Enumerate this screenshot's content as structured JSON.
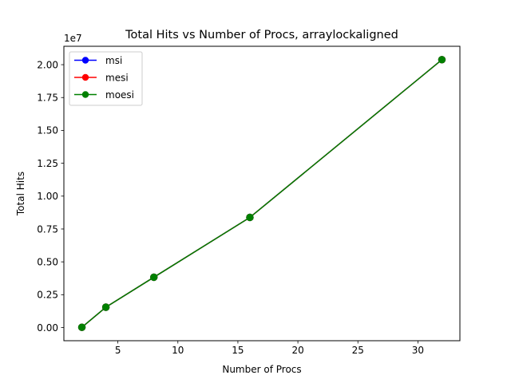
{
  "chart_data": {
    "type": "line",
    "title": "Total Hits vs Number of Procs, arraylockaligned",
    "xlabel": "Number of Procs",
    "ylabel": "Total Hits",
    "y_offset_label": "1e7",
    "y_scale_factor": 10000000,
    "xlim": [
      0.5,
      33.5
    ],
    "ylim": [
      -1000000,
      21400000
    ],
    "x_ticks": [
      5,
      10,
      15,
      20,
      25,
      30
    ],
    "x_tick_labels": [
      "5",
      "10",
      "15",
      "20",
      "25",
      "30"
    ],
    "y_ticks": [
      0,
      2500000,
      5000000,
      7500000,
      10000000,
      12500000,
      15000000,
      17500000,
      20000000
    ],
    "y_tick_labels": [
      "0.00",
      "0.25",
      "0.50",
      "0.75",
      "1.00",
      "1.25",
      "1.50",
      "1.75",
      "2.00"
    ],
    "grid": false,
    "legend_position": "top-left",
    "x": [
      2,
      4,
      8,
      16,
      32
    ],
    "series": [
      {
        "name": "msi",
        "color": "#0000ff",
        "values": [
          20000,
          1550000,
          3830000,
          8380000,
          20380000
        ]
      },
      {
        "name": "mesi",
        "color": "#ff0000",
        "values": [
          20000,
          1550000,
          3830000,
          8380000,
          20380000
        ]
      },
      {
        "name": "moesi",
        "color": "#008000",
        "values": [
          20000,
          1550000,
          3830000,
          8380000,
          20380000
        ]
      }
    ]
  }
}
